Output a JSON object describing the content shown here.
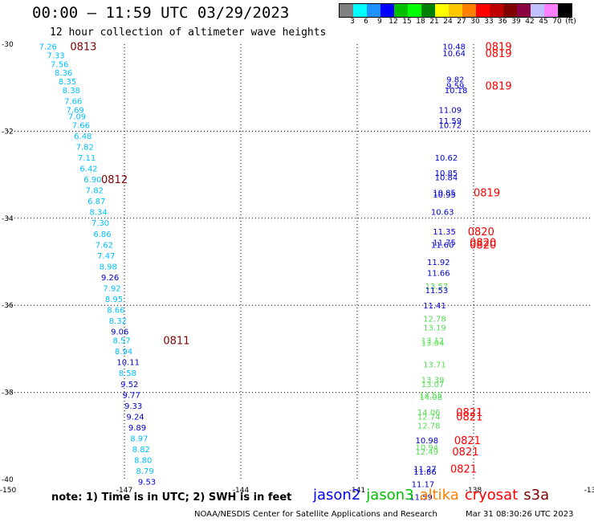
{
  "header": {
    "title": "00:00 – 11:59 UTC 03/29/2023",
    "subtitle": "12 hour collection of altimeter wave heights"
  },
  "scale": {
    "colors": [
      "#808080",
      "#00ffff",
      "#1e90ff",
      "#0000ff",
      "#00c000",
      "#00ff00",
      "#008000",
      "#ffff00",
      "#ffc800",
      "#ff8000",
      "#ff0000",
      "#c00000",
      "#800000",
      "#8b0040",
      "#c0c0ff",
      "#ff80ff",
      "#000000"
    ],
    "labels": [
      "3",
      "6",
      "9",
      "12",
      "15",
      "18",
      "21",
      "24",
      "27",
      "30",
      "33",
      "36",
      "39",
      "42",
      "45",
      "70",
      "(ft)"
    ]
  },
  "note": "note: 1) Time is in UTC; 2) SWH is in feet",
  "legend": [
    {
      "label": "jason2",
      "color": "#0000ff"
    },
    {
      "label": "jason3",
      "color": "#00c000"
    },
    {
      "label": "altika",
      "color": "#ff8000"
    },
    {
      "label": "cryosat",
      "color": "#ff0000"
    },
    {
      "label": "s3a",
      "color": "#800000"
    }
  ],
  "footer": {
    "left": "NOAA/NESDIS Center for Satellite Applications and Research",
    "right": "Mar 31 08:30:26 UTC 2023"
  },
  "chart_data": {
    "type": "scatter",
    "title": "00:00 – 11:59 UTC 03/29/2023",
    "x_ticks": [
      "-150",
      "-147",
      "-144",
      "-141",
      "-138",
      "-13"
    ],
    "y_ticks": [
      "-30",
      "-32",
      "-34",
      "-36",
      "-38",
      "-40"
    ],
    "xlim": [
      -150,
      -135
    ],
    "ylim": [
      -40,
      -30
    ],
    "grid": true,
    "points": [
      {
        "x": -149.2,
        "y": -30.05,
        "v": "7.26",
        "c": "#00bfff"
      },
      {
        "x": -149.0,
        "y": -30.25,
        "v": "7.33",
        "c": "#00bfff"
      },
      {
        "x": -148.9,
        "y": -30.45,
        "v": "7.56",
        "c": "#00bfff"
      },
      {
        "x": -148.8,
        "y": -30.65,
        "v": "8.36",
        "c": "#00bfff"
      },
      {
        "x": -148.7,
        "y": -30.85,
        "v": "8.35",
        "c": "#00bfff"
      },
      {
        "x": -148.6,
        "y": -31.05,
        "v": "8.38",
        "c": "#00bfff"
      },
      {
        "x": -148.55,
        "y": -31.3,
        "v": "7.66",
        "c": "#00bfff"
      },
      {
        "x": -148.5,
        "y": -31.5,
        "v": "7.69",
        "c": "#00bfff"
      },
      {
        "x": -148.45,
        "y": -31.65,
        "v": "7.09",
        "c": "#00bfff"
      },
      {
        "x": -148.35,
        "y": -31.85,
        "v": "7.66",
        "c": "#00bfff"
      },
      {
        "x": -148.3,
        "y": -32.1,
        "v": "6.48",
        "c": "#00bfff"
      },
      {
        "x": -148.25,
        "y": -32.35,
        "v": "7.82",
        "c": "#00bfff"
      },
      {
        "x": -148.2,
        "y": -32.6,
        "v": "7.11",
        "c": "#00bfff"
      },
      {
        "x": -148.15,
        "y": -32.85,
        "v": "6.42",
        "c": "#00bfff"
      },
      {
        "x": -148.05,
        "y": -33.1,
        "v": "6.90",
        "c": "#00bfff"
      },
      {
        "x": -148.0,
        "y": -33.35,
        "v": "7.82",
        "c": "#00bfff"
      },
      {
        "x": -147.95,
        "y": -33.6,
        "v": "6.87",
        "c": "#00bfff"
      },
      {
        "x": -147.9,
        "y": -33.85,
        "v": "8.34",
        "c": "#00bfff"
      },
      {
        "x": -147.85,
        "y": -34.1,
        "v": "7.30",
        "c": "#00bfff"
      },
      {
        "x": -147.8,
        "y": -34.35,
        "v": "6.86",
        "c": "#00bfff"
      },
      {
        "x": -147.75,
        "y": -34.6,
        "v": "7.62",
        "c": "#00bfff"
      },
      {
        "x": -147.7,
        "y": -34.85,
        "v": "7.47",
        "c": "#00bfff"
      },
      {
        "x": -147.65,
        "y": -35.1,
        "v": "8.98",
        "c": "#00bfff"
      },
      {
        "x": -147.6,
        "y": -35.35,
        "v": "9.26",
        "c": "#0000cd"
      },
      {
        "x": -147.55,
        "y": -35.6,
        "v": "7.92",
        "c": "#00bfff"
      },
      {
        "x": -147.5,
        "y": -35.85,
        "v": "8.95",
        "c": "#00bfff"
      },
      {
        "x": -147.45,
        "y": -36.1,
        "v": "8.66",
        "c": "#00bfff"
      },
      {
        "x": -147.4,
        "y": -36.35,
        "v": "8.32",
        "c": "#00bfff"
      },
      {
        "x": -147.35,
        "y": -36.6,
        "v": "9.06",
        "c": "#0000cd"
      },
      {
        "x": -147.3,
        "y": -36.8,
        "v": "8.57",
        "c": "#00bfff"
      },
      {
        "x": -147.25,
        "y": -37.05,
        "v": "8.94",
        "c": "#00bfff"
      },
      {
        "x": -147.2,
        "y": -37.3,
        "v": "10.11",
        "c": "#0000cd"
      },
      {
        "x": -147.15,
        "y": -37.55,
        "v": "8.58",
        "c": "#00bfff"
      },
      {
        "x": -147.1,
        "y": -37.8,
        "v": "9.52",
        "c": "#0000cd"
      },
      {
        "x": -147.05,
        "y": -38.05,
        "v": "9.77",
        "c": "#0000cd"
      },
      {
        "x": -147.0,
        "y": -38.3,
        "v": "9.33",
        "c": "#0000cd"
      },
      {
        "x": -146.95,
        "y": -38.55,
        "v": "9.24",
        "c": "#0000cd"
      },
      {
        "x": -146.9,
        "y": -38.8,
        "v": "9.89",
        "c": "#0000cd"
      },
      {
        "x": -146.85,
        "y": -39.05,
        "v": "8.97",
        "c": "#00bfff"
      },
      {
        "x": -146.8,
        "y": -39.3,
        "v": "8.82",
        "c": "#00bfff"
      },
      {
        "x": -146.75,
        "y": -39.55,
        "v": "8.80",
        "c": "#00bfff"
      },
      {
        "x": -146.7,
        "y": -39.8,
        "v": "8.79",
        "c": "#00bfff"
      },
      {
        "x": -146.65,
        "y": -40.05,
        "v": "9.53",
        "c": "#0000cd"
      },
      {
        "x": -138.8,
        "y": -30.05,
        "v": "10.48",
        "c": "#0000cd"
      },
      {
        "x": -138.8,
        "y": -30.2,
        "v": "10.64",
        "c": "#0000cd"
      },
      {
        "x": -138.7,
        "y": -30.8,
        "v": "9.82",
        "c": "#0000cd"
      },
      {
        "x": -138.7,
        "y": -30.95,
        "v": "9.59",
        "c": "#0000cd"
      },
      {
        "x": -138.75,
        "y": -31.05,
        "v": "10.18",
        "c": "#0000cd"
      },
      {
        "x": -138.9,
        "y": -31.5,
        "v": "11.09",
        "c": "#0000cd"
      },
      {
        "x": -138.9,
        "y": -31.75,
        "v": "11.59",
        "c": "#0000cd"
      },
      {
        "x": -138.9,
        "y": -31.85,
        "v": "10.72",
        "c": "#0000cd"
      },
      {
        "x": -139.0,
        "y": -32.6,
        "v": "10.62",
        "c": "#0000cd"
      },
      {
        "x": -139.0,
        "y": -32.95,
        "v": "10.85",
        "c": "#0000cd"
      },
      {
        "x": -139.0,
        "y": -33.05,
        "v": "10.84",
        "c": "#0000cd"
      },
      {
        "x": -139.05,
        "y": -33.4,
        "v": "10.85",
        "c": "#0000cd"
      },
      {
        "x": -139.05,
        "y": -33.45,
        "v": "10.95",
        "c": "#0000cd"
      },
      {
        "x": -139.1,
        "y": -33.85,
        "v": "10.63",
        "c": "#0000cd"
      },
      {
        "x": -139.05,
        "y": -34.3,
        "v": "11.35",
        "c": "#0000cd"
      },
      {
        "x": -139.05,
        "y": -34.55,
        "v": "11.75",
        "c": "#0000cd"
      },
      {
        "x": -139.1,
        "y": -34.6,
        "v": "11.60",
        "c": "#0000cd"
      },
      {
        "x": -139.2,
        "y": -35.0,
        "v": "11.92",
        "c": "#0000cd"
      },
      {
        "x": -139.2,
        "y": -35.25,
        "v": "11.66",
        "c": "#0000cd"
      },
      {
        "x": -139.25,
        "y": -35.55,
        "v": "13.57",
        "c": "#55dd55"
      },
      {
        "x": -139.25,
        "y": -35.65,
        "v": "11.53",
        "c": "#0000cd"
      },
      {
        "x": -139.3,
        "y": -36.0,
        "v": "11.41",
        "c": "#0000cd"
      },
      {
        "x": -139.3,
        "y": -36.3,
        "v": "12.78",
        "c": "#55dd55"
      },
      {
        "x": -139.3,
        "y": -36.5,
        "v": "13.19",
        "c": "#55dd55"
      },
      {
        "x": -139.35,
        "y": -36.8,
        "v": "13.12",
        "c": "#55dd55"
      },
      {
        "x": -139.35,
        "y": -36.85,
        "v": "13.04",
        "c": "#55dd55"
      },
      {
        "x": -139.3,
        "y": -37.35,
        "v": "13.71",
        "c": "#55dd55"
      },
      {
        "x": -139.35,
        "y": -37.7,
        "v": "13.39",
        "c": "#55dd55"
      },
      {
        "x": -139.35,
        "y": -37.8,
        "v": "13.07",
        "c": "#55dd55"
      },
      {
        "x": -139.4,
        "y": -38.05,
        "v": "14.55",
        "c": "#55dd55"
      },
      {
        "x": -139.4,
        "y": -38.1,
        "v": "14.08",
        "c": "#55dd55"
      },
      {
        "x": -139.45,
        "y": -38.45,
        "v": "14.06",
        "c": "#55dd55"
      },
      {
        "x": -139.45,
        "y": -38.55,
        "v": "12.74",
        "c": "#55dd55"
      },
      {
        "x": -139.45,
        "y": -38.75,
        "v": "12.78",
        "c": "#55dd55"
      },
      {
        "x": -139.5,
        "y": -39.1,
        "v": "10.98",
        "c": "#0000cd"
      },
      {
        "x": -139.5,
        "y": -39.25,
        "v": "10.94",
        "c": "#55dd55"
      },
      {
        "x": -139.5,
        "y": -39.35,
        "v": "12.49",
        "c": "#55dd55"
      },
      {
        "x": -139.55,
        "y": -39.75,
        "v": "11.27",
        "c": "#0000cd"
      },
      {
        "x": -139.55,
        "y": -39.82,
        "v": "11.86",
        "c": "#0000cd"
      },
      {
        "x": -139.6,
        "y": -40.1,
        "v": "11.17",
        "c": "#0000cd"
      },
      {
        "x": -139.65,
        "y": -40.4,
        "v": "11.59",
        "c": "#0000cd"
      }
    ],
    "time_labels": [
      {
        "x": -148.4,
        "y": -30.05,
        "v": "0813",
        "c": "#800000"
      },
      {
        "x": -147.6,
        "y": -33.1,
        "v": "0812",
        "c": "#800000"
      },
      {
        "x": -146.0,
        "y": -36.8,
        "v": "0811",
        "c": "#800000"
      },
      {
        "x": -137.7,
        "y": -30.05,
        "v": "0819",
        "c": "#ff0000"
      },
      {
        "x": -137.7,
        "y": -30.2,
        "v": "0819",
        "c": "#ff0000"
      },
      {
        "x": -137.7,
        "y": -30.95,
        "v": "0819",
        "c": "#ff0000"
      },
      {
        "x": -138.0,
        "y": -33.4,
        "v": "0819",
        "c": "#ff0000"
      },
      {
        "x": -138.15,
        "y": -34.3,
        "v": "0820",
        "c": "#ff0000"
      },
      {
        "x": -138.1,
        "y": -34.55,
        "v": "0820",
        "c": "#ff0000"
      },
      {
        "x": -138.1,
        "y": -34.6,
        "v": "0820",
        "c": "#ff0000"
      },
      {
        "x": -138.45,
        "y": -38.45,
        "v": "0821",
        "c": "#ff0000"
      },
      {
        "x": -138.45,
        "y": -38.55,
        "v": "0821",
        "c": "#ff0000"
      },
      {
        "x": -138.5,
        "y": -39.1,
        "v": "0821",
        "c": "#ff0000"
      },
      {
        "x": -138.55,
        "y": -39.35,
        "v": "0821",
        "c": "#ff0000"
      },
      {
        "x": -138.6,
        "y": -39.75,
        "v": "0821",
        "c": "#ff0000"
      }
    ]
  }
}
